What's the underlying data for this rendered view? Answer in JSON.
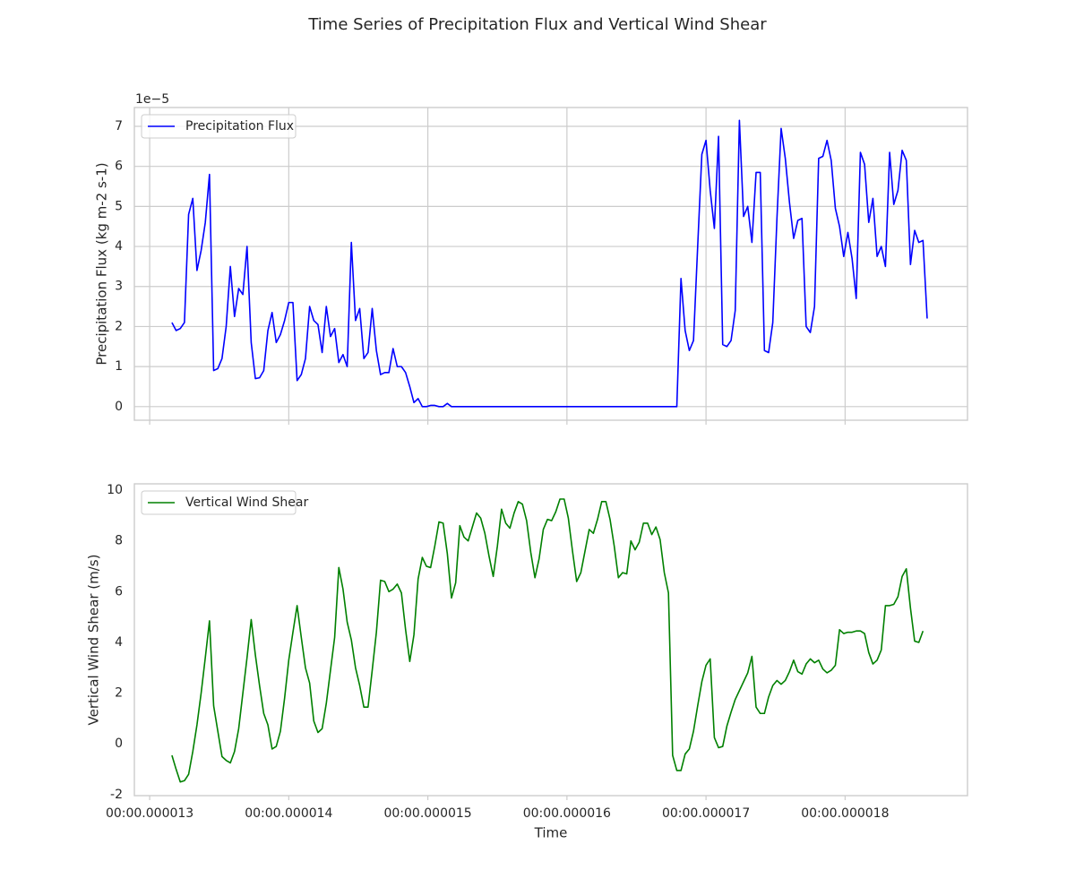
{
  "chart_data": {
    "type": "line",
    "title": "Time Series of Precipitation Flux and Vertical Wind Shear",
    "xlabel": "Time",
    "xlim": [
      12.89,
      18.88
    ],
    "xticks": [
      {
        "value": 13,
        "label": "00:00.000013"
      },
      {
        "value": 14,
        "label": "00:00.000014"
      },
      {
        "value": 15,
        "label": "00:00.000015"
      },
      {
        "value": 16,
        "label": "00:00.000016"
      },
      {
        "value": 17,
        "label": "00:00.000017"
      },
      {
        "value": 18,
        "label": "00:00.000018"
      }
    ],
    "x": [
      13.16,
      13.19,
      13.22,
      13.25,
      13.28,
      13.31,
      13.34,
      13.37,
      13.4,
      13.43,
      13.46,
      13.49,
      13.52,
      13.55,
      13.58,
      13.61,
      13.64,
      13.67,
      13.7,
      13.73,
      13.76,
      13.79,
      13.82,
      13.85,
      13.88,
      13.91,
      13.94,
      13.97,
      14.0,
      14.03,
      14.06,
      14.09,
      14.12,
      14.15,
      14.18,
      14.21,
      14.24,
      14.27,
      14.3,
      14.33,
      14.36,
      14.39,
      14.42,
      14.45,
      14.48,
      14.51,
      14.54,
      14.57,
      14.6,
      14.63,
      14.66,
      14.69,
      14.72,
      14.75,
      14.78,
      14.81,
      14.84,
      14.87,
      14.9,
      14.93,
      14.96,
      14.99,
      15.02,
      15.05,
      15.08,
      15.11,
      15.14,
      15.17,
      15.2,
      15.23,
      15.26,
      15.29,
      15.32,
      15.35,
      15.38,
      15.41,
      15.44,
      15.47,
      15.5,
      15.53,
      15.56,
      15.59,
      15.62,
      15.65,
      15.68,
      15.71,
      15.74,
      15.77,
      15.8,
      15.83,
      15.86,
      15.89,
      15.92,
      15.95,
      15.98,
      16.01,
      16.04,
      16.07,
      16.1,
      16.13,
      16.16,
      16.19,
      16.22,
      16.25,
      16.28,
      16.31,
      16.34,
      16.37,
      16.4,
      16.43,
      16.46,
      16.49,
      16.52,
      16.55,
      16.58,
      16.61,
      16.64,
      16.67,
      16.7,
      16.73,
      16.76,
      16.79,
      16.82,
      16.85,
      16.88,
      16.91,
      16.94,
      16.97,
      17.0,
      17.03,
      17.06,
      17.09,
      17.12,
      17.15,
      17.18,
      17.21,
      17.24,
      17.27,
      17.3,
      17.33,
      17.36,
      17.39,
      17.42,
      17.45,
      17.48,
      17.51,
      17.54,
      17.57,
      17.6,
      17.63,
      17.66,
      17.69,
      17.72,
      17.75,
      17.78,
      17.81,
      17.84,
      17.87,
      17.9,
      17.93,
      17.96,
      17.99,
      18.02,
      18.05,
      18.08,
      18.11,
      18.14,
      18.17,
      18.2,
      18.23,
      18.26,
      18.29,
      18.32,
      18.35,
      18.38,
      18.41,
      18.44,
      18.47,
      18.5,
      18.53,
      18.56,
      18.59
    ],
    "panels": [
      {
        "ylabel": "Precipitation Flux (kg m-2 s-1)",
        "y_offset_label": "1e−5",
        "ylim": [
          -0.34,
          7.47
        ],
        "yticks": [
          0,
          1,
          2,
          3,
          4,
          5,
          6,
          7
        ],
        "grid": true,
        "legend": "upper left",
        "series": [
          {
            "name": "Precipitation Flux",
            "color": "#0000ff",
            "values": [
              2.1,
              1.9,
              1.95,
              2.1,
              4.8,
              5.2,
              3.4,
              3.9,
              4.6,
              5.8,
              0.9,
              0.95,
              1.2,
              2.0,
              3.5,
              2.25,
              2.95,
              2.8,
              4.0,
              1.6,
              0.7,
              0.72,
              0.9,
              1.9,
              2.35,
              1.6,
              1.8,
              2.15,
              2.6,
              2.6,
              0.65,
              0.8,
              1.2,
              2.5,
              2.15,
              2.05,
              1.35,
              2.5,
              1.75,
              1.95,
              1.1,
              1.3,
              1.0,
              4.1,
              2.15,
              2.45,
              1.2,
              1.35,
              2.45,
              1.4,
              0.8,
              0.85,
              0.85,
              1.45,
              1.0,
              1.0,
              0.85,
              0.5,
              0.1,
              0.2,
              0,
              0,
              0.03,
              0.03,
              0,
              0,
              0.08,
              0,
              0,
              0,
              0,
              0,
              0,
              0,
              0,
              0,
              0,
              0,
              0,
              0,
              0,
              0,
              0,
              0,
              0,
              0,
              0,
              0,
              0,
              0,
              0,
              0,
              0,
              0,
              0,
              0,
              0,
              0,
              0,
              0,
              0,
              0,
              0,
              0,
              0,
              0,
              0,
              0,
              0,
              0,
              0,
              0,
              0,
              0,
              0,
              0,
              0,
              0,
              0,
              0,
              0,
              0,
              3.2,
              1.9,
              1.4,
              1.65,
              4.0,
              6.3,
              6.65,
              5.4,
              4.45,
              6.75,
              1.55,
              1.5,
              1.65,
              2.4,
              7.15,
              4.75,
              5.0,
              4.1,
              5.85,
              5.85,
              1.4,
              1.35,
              2.1,
              4.7,
              6.95,
              6.2,
              5.1,
              4.2,
              4.65,
              4.7,
              2.0,
              1.85,
              2.5,
              6.2,
              6.25,
              6.65,
              6.15,
              4.95,
              4.5,
              3.75,
              4.35,
              3.7,
              2.7,
              6.35,
              6.05,
              4.6,
              5.2,
              3.75,
              4.0,
              3.5,
              6.35,
              5.05,
              5.4,
              6.4,
              6.15,
              3.55,
              4.4,
              4.1,
              4.15,
              2.2
            ]
          }
        ]
      },
      {
        "ylabel": "Vertical Wind Shear (m/s)",
        "ylim": [
          -2.04,
          10.25
        ],
        "yticks": [
          -2,
          0,
          2,
          4,
          6,
          8,
          10
        ],
        "grid": false,
        "legend": "upper left",
        "series": [
          {
            "name": "Vertical Wind Shear",
            "color": "#008000",
            "values": [
              -0.45,
              -1.0,
              -1.5,
              -1.45,
              -1.2,
              -0.3,
              0.75,
              2.0,
              3.4,
              4.85,
              1.5,
              0.5,
              -0.5,
              -0.65,
              -0.75,
              -0.3,
              0.6,
              2.0,
              3.4,
              4.9,
              3.5,
              2.3,
              1.2,
              0.75,
              -0.2,
              -0.1,
              0.5,
              1.8,
              3.3,
              4.4,
              5.45,
              4.2,
              3.0,
              2.4,
              0.9,
              0.45,
              0.6,
              1.6,
              2.9,
              4.2,
              6.95,
              6.1,
              4.8,
              4.1,
              3.0,
              2.3,
              1.45,
              1.45,
              2.9,
              4.4,
              6.45,
              6.4,
              6.0,
              6.1,
              6.3,
              5.95,
              4.5,
              3.25,
              4.3,
              6.5,
              7.35,
              7.0,
              6.95,
              7.8,
              8.75,
              8.7,
              7.5,
              5.75,
              6.35,
              8.6,
              8.15,
              8.0,
              8.55,
              9.1,
              8.9,
              8.3,
              7.4,
              6.6,
              7.8,
              9.25,
              8.7,
              8.5,
              9.1,
              9.55,
              9.45,
              8.8,
              7.55,
              6.55,
              7.3,
              8.45,
              8.85,
              8.8,
              9.15,
              9.65,
              9.65,
              8.9,
              7.6,
              6.4,
              6.75,
              7.6,
              8.45,
              8.3,
              8.85,
              9.55,
              9.55,
              8.85,
              7.8,
              6.55,
              6.75,
              6.7,
              8.0,
              7.65,
              7.95,
              8.7,
              8.7,
              8.25,
              8.55,
              8.05,
              6.75,
              5.95,
              -0.45,
              -1.05,
              -1.05,
              -0.4,
              -0.2,
              0.5,
              1.5,
              2.45,
              3.1,
              3.35,
              0.25,
              -0.15,
              -0.1,
              0.7,
              1.25,
              1.75,
              2.1,
              2.45,
              2.8,
              3.45,
              1.45,
              1.2,
              1.2,
              1.85,
              2.3,
              2.5,
              2.35,
              2.5,
              2.85,
              3.3,
              2.85,
              2.75,
              3.15,
              3.35,
              3.2,
              3.3,
              2.95,
              2.8,
              2.9,
              3.1,
              4.5,
              4.35,
              4.4,
              4.4,
              4.45,
              4.45,
              4.35,
              3.6,
              3.15,
              3.3,
              3.7,
              5.45,
              5.45,
              5.5,
              5.8,
              6.6,
              6.9,
              5.35,
              4.05,
              4.0,
              4.45
            ]
          }
        ]
      }
    ]
  }
}
